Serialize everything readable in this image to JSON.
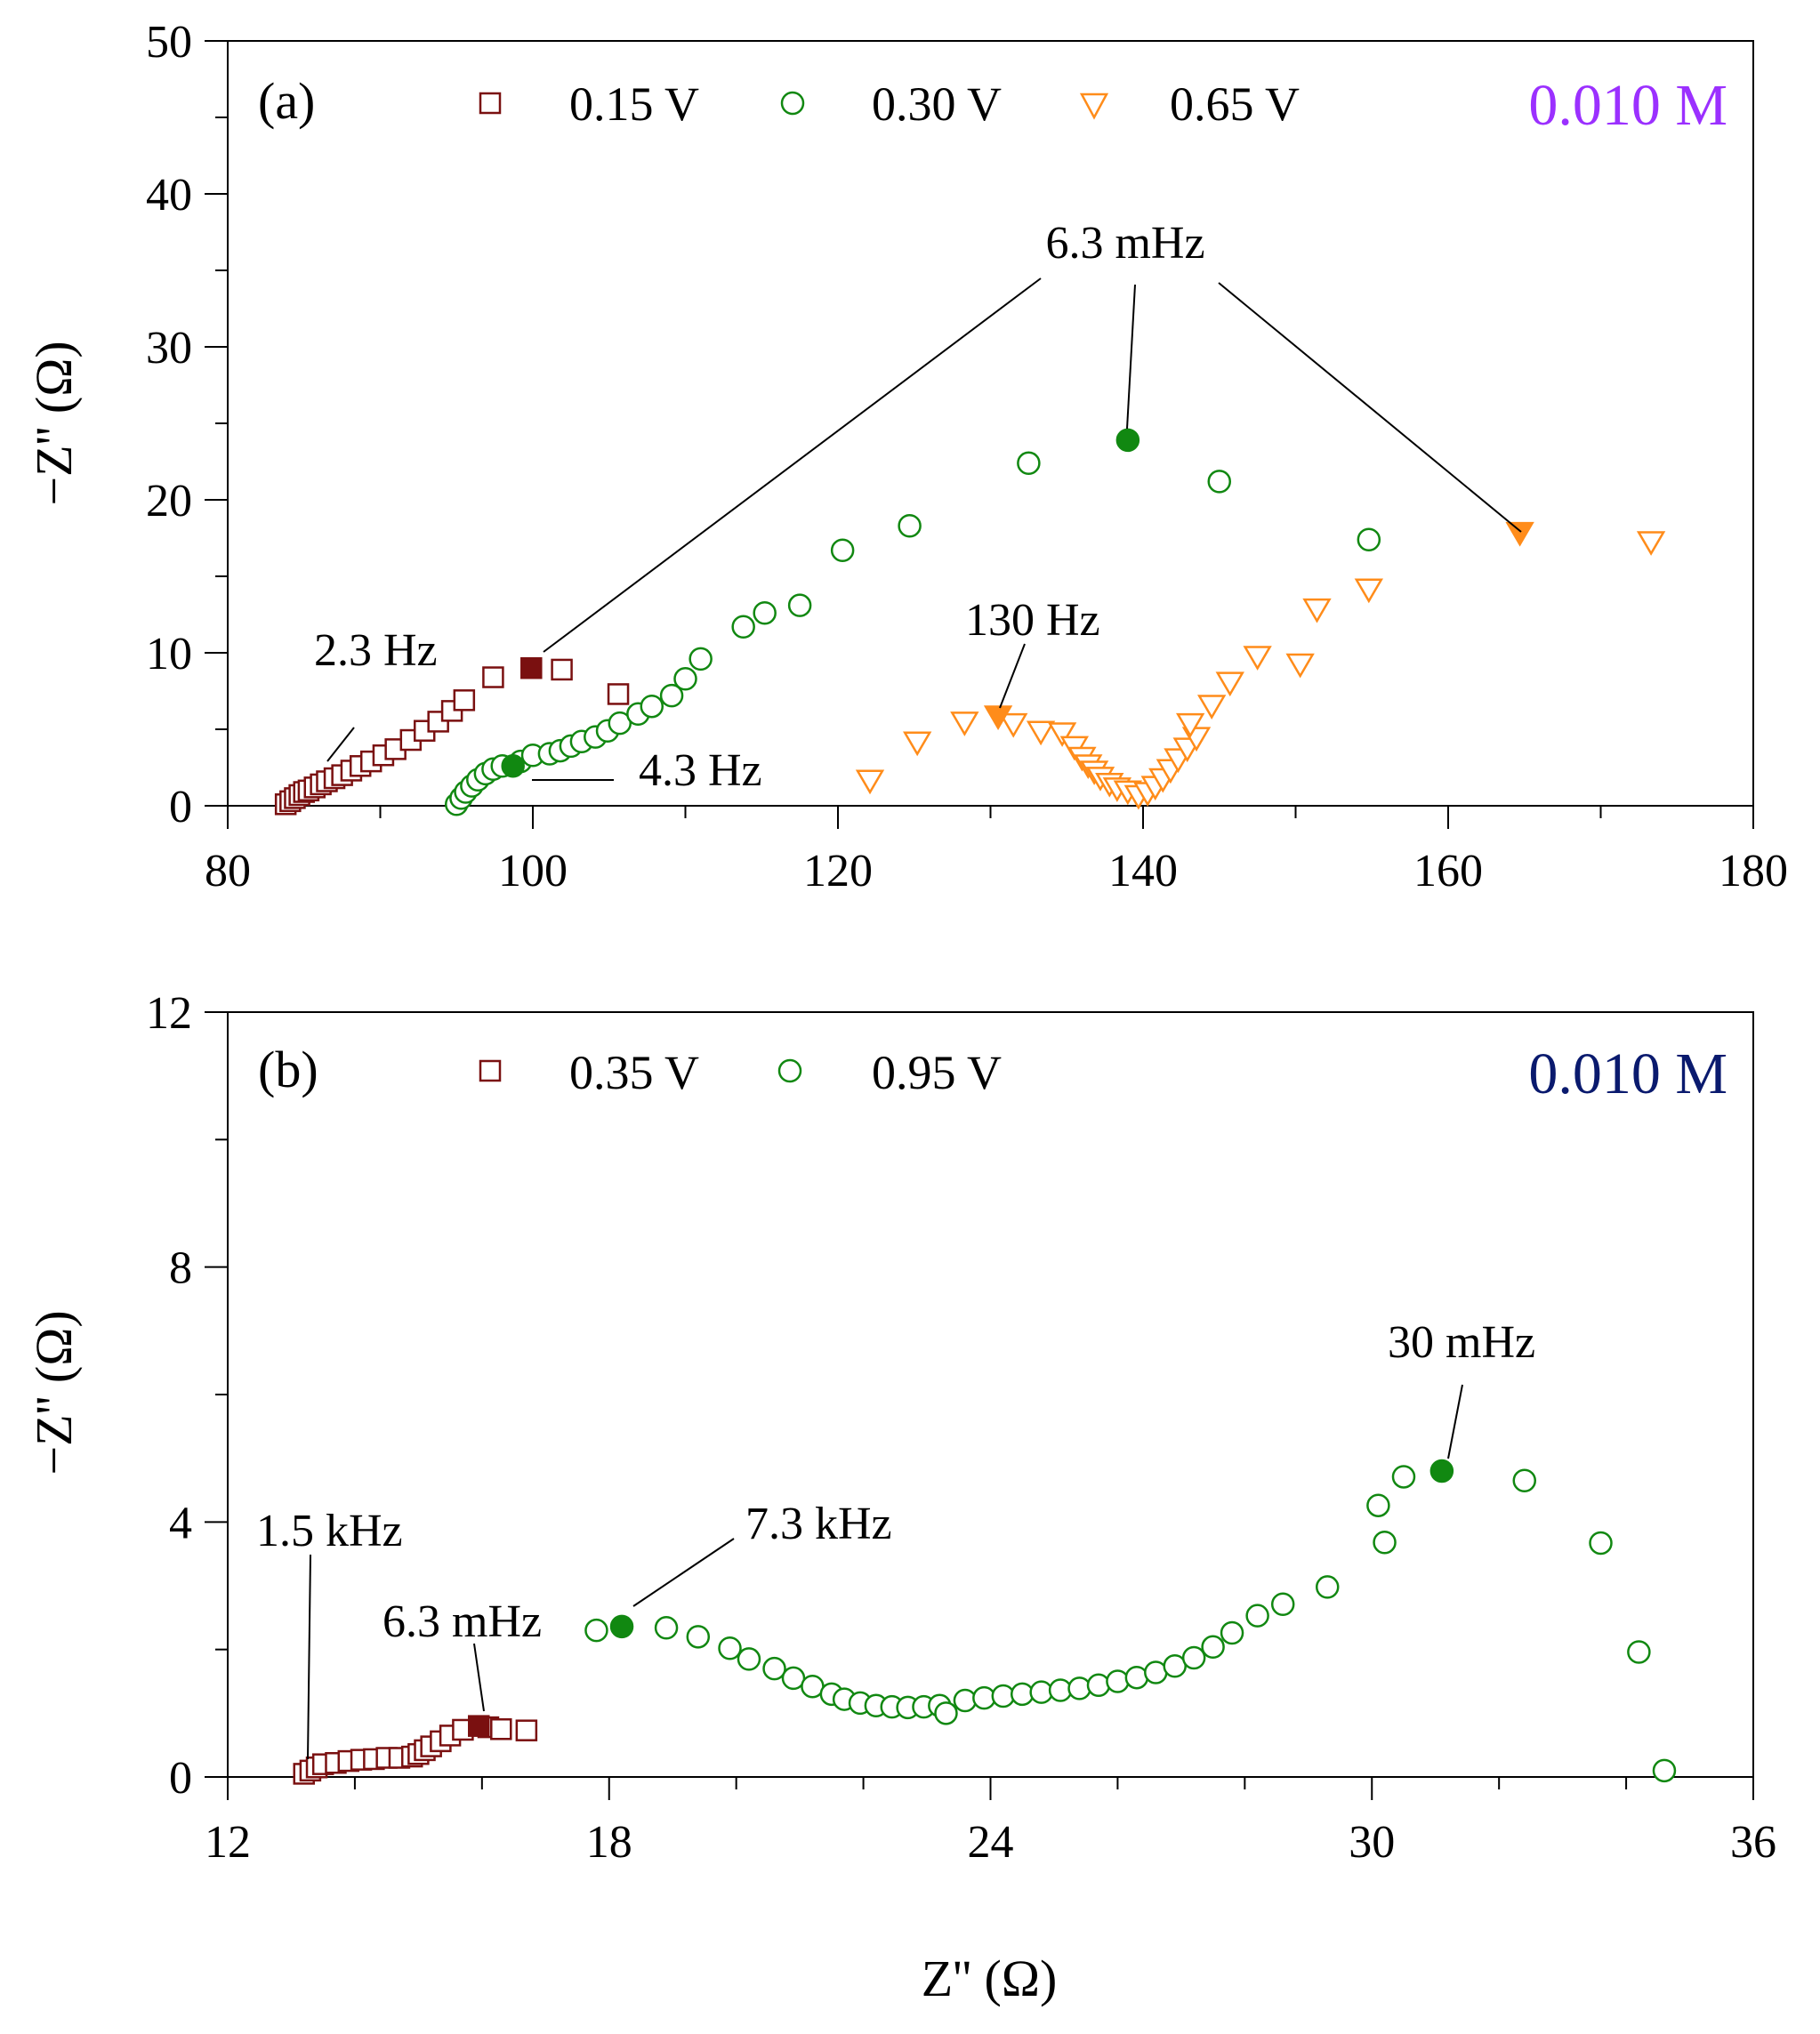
{
  "figure": {
    "xlabel": "Z'' (Ω)",
    "ylabel": "−Z'' (Ω)"
  },
  "colors": {
    "red": "#7a1010",
    "green": "#118811",
    "orange": "#ff8c1a",
    "purple": "#9b30ff",
    "navy": "#0a1a6e"
  },
  "chart_data": [
    {
      "type": "scatter",
      "panel": "(a)",
      "concentration": "0.010 M",
      "concentration_color": "#9b30ff",
      "xlim": [
        80,
        180
      ],
      "ylim": [
        0,
        50
      ],
      "xticks": [
        80,
        100,
        120,
        140,
        160,
        180
      ],
      "yticks": [
        0,
        10,
        20,
        30,
        40,
        50
      ],
      "series": [
        {
          "name": "0.15 V",
          "marker": "square",
          "color": "#7a1010",
          "points": [
            [
              83.8,
              0.1
            ],
            [
              84.1,
              0.3
            ],
            [
              84.4,
              0.5
            ],
            [
              84.7,
              0.7
            ],
            [
              85.0,
              0.9
            ],
            [
              85.3,
              1.0
            ],
            [
              85.7,
              1.2
            ],
            [
              86.1,
              1.4
            ],
            [
              86.5,
              1.6
            ],
            [
              87.0,
              1.8
            ],
            [
              87.5,
              2.0
            ],
            [
              88.1,
              2.3
            ],
            [
              88.7,
              2.6
            ],
            [
              89.4,
              2.9
            ],
            [
              90.2,
              3.3
            ],
            [
              91.0,
              3.7
            ],
            [
              92.0,
              4.3
            ],
            [
              92.9,
              4.9
            ],
            [
              93.8,
              5.5
            ],
            [
              94.7,
              6.2
            ],
            [
              95.5,
              6.9
            ],
            [
              97.4,
              8.4
            ],
            [
              101.9,
              8.9
            ],
            [
              105.6,
              7.3
            ]
          ],
          "highlight": [
            [
              99.9,
              9.0
            ]
          ]
        },
        {
          "name": "0.30 V",
          "marker": "circle",
          "color": "#118811",
          "points": [
            [
              95.0,
              0.1
            ],
            [
              95.3,
              0.5
            ],
            [
              95.6,
              0.9
            ],
            [
              96.0,
              1.3
            ],
            [
              96.4,
              1.7
            ],
            [
              96.9,
              2.1
            ],
            [
              97.4,
              2.4
            ],
            [
              98.0,
              2.6
            ],
            [
              99.2,
              2.9
            ],
            [
              100.0,
              3.3
            ],
            [
              101.1,
              3.4
            ],
            [
              101.8,
              3.6
            ],
            [
              102.5,
              3.9
            ],
            [
              103.2,
              4.2
            ],
            [
              104.1,
              4.5
            ],
            [
              104.9,
              4.9
            ],
            [
              105.7,
              5.4
            ],
            [
              106.9,
              6.0
            ],
            [
              107.8,
              6.5
            ],
            [
              109.1,
              7.2
            ],
            [
              110.0,
              8.3
            ],
            [
              111.0,
              9.6
            ],
            [
              113.8,
              11.7
            ],
            [
              115.2,
              12.6
            ],
            [
              117.5,
              13.1
            ],
            [
              120.3,
              16.7
            ],
            [
              124.7,
              18.3
            ],
            [
              132.5,
              22.4
            ],
            [
              145.0,
              21.2
            ],
            [
              154.8,
              17.4
            ]
          ],
          "highlight": [
            [
              98.7,
              2.6
            ],
            [
              139.0,
              23.9
            ]
          ]
        },
        {
          "name": "0.65 V",
          "marker": "triangle-down",
          "color": "#ff8c1a",
          "points": [
            [
              122.1,
              1.7
            ],
            [
              125.2,
              4.2
            ],
            [
              128.3,
              5.5
            ],
            [
              131.5,
              5.4
            ],
            [
              133.3,
              4.9
            ],
            [
              134.7,
              4.8
            ],
            [
              135.5,
              3.9
            ],
            [
              136.0,
              3.2
            ],
            [
              136.4,
              2.7
            ],
            [
              136.8,
              2.3
            ],
            [
              137.2,
              1.9
            ],
            [
              137.8,
              1.5
            ],
            [
              138.3,
              1.2
            ],
            [
              139.0,
              1.0
            ],
            [
              139.7,
              0.7
            ],
            [
              140.3,
              0.9
            ],
            [
              140.8,
              1.3
            ],
            [
              141.3,
              1.8
            ],
            [
              141.8,
              2.4
            ],
            [
              142.3,
              3.1
            ],
            [
              142.9,
              3.8
            ],
            [
              143.5,
              4.5
            ],
            [
              143.1,
              5.4
            ],
            [
              144.5,
              6.6
            ],
            [
              145.7,
              8.1
            ],
            [
              147.5,
              9.8
            ],
            [
              150.3,
              9.3
            ],
            [
              151.4,
              12.9
            ],
            [
              154.8,
              14.2
            ],
            [
              173.3,
              17.3
            ]
          ],
          "highlight": [
            [
              130.5,
              5.9
            ],
            [
              164.7,
              17.9
            ]
          ]
        }
      ],
      "annotations": [
        "6.3 mHz",
        "2.3 Hz",
        "4.3 Hz",
        "130 Hz"
      ]
    },
    {
      "type": "scatter",
      "panel": "(b)",
      "concentration": "0.010 M",
      "concentration_color": "#0a1a6e",
      "xlim": [
        12,
        36
      ],
      "ylim": [
        0,
        12
      ],
      "xticks": [
        12,
        18,
        24,
        30,
        36
      ],
      "yticks": [
        0,
        4,
        8,
        12
      ],
      "series": [
        {
          "name": "0.35 V",
          "marker": "square",
          "color": "#7a1010",
          "points": [
            [
              13.2,
              0.05
            ],
            [
              13.3,
              0.1
            ],
            [
              13.4,
              0.15
            ],
            [
              13.5,
              0.2
            ],
            [
              13.7,
              0.22
            ],
            [
              13.9,
              0.25
            ],
            [
              14.1,
              0.27
            ],
            [
              14.3,
              0.28
            ],
            [
              14.5,
              0.3
            ],
            [
              14.7,
              0.3
            ],
            [
              14.9,
              0.32
            ],
            [
              15.0,
              0.36
            ],
            [
              15.1,
              0.42
            ],
            [
              15.2,
              0.48
            ],
            [
              15.35,
              0.56
            ],
            [
              15.5,
              0.65
            ],
            [
              15.7,
              0.74
            ],
            [
              16.1,
              0.78
            ],
            [
              16.3,
              0.75
            ],
            [
              16.7,
              0.73
            ]
          ],
          "highlight": [
            [
              15.95,
              0.8
            ]
          ]
        },
        {
          "name": "0.95 V",
          "marker": "circle",
          "color": "#118811",
          "points": [
            [
              17.8,
              2.3
            ],
            [
              18.9,
              2.34
            ],
            [
              19.4,
              2.2
            ],
            [
              19.9,
              2.02
            ],
            [
              20.2,
              1.85
            ],
            [
              20.6,
              1.7
            ],
            [
              20.9,
              1.55
            ],
            [
              21.2,
              1.42
            ],
            [
              21.5,
              1.3
            ],
            [
              21.7,
              1.22
            ],
            [
              21.95,
              1.16
            ],
            [
              22.2,
              1.12
            ],
            [
              22.45,
              1.1
            ],
            [
              22.7,
              1.09
            ],
            [
              22.95,
              1.1
            ],
            [
              23.2,
              1.12
            ],
            [
              23.3,
              1.0
            ],
            [
              23.6,
              1.2
            ],
            [
              23.9,
              1.24
            ],
            [
              24.2,
              1.27
            ],
            [
              24.5,
              1.3
            ],
            [
              24.8,
              1.33
            ],
            [
              25.1,
              1.36
            ],
            [
              25.4,
              1.39
            ],
            [
              25.7,
              1.44
            ],
            [
              26.0,
              1.5
            ],
            [
              26.3,
              1.56
            ],
            [
              26.6,
              1.64
            ],
            [
              26.9,
              1.74
            ],
            [
              27.2,
              1.87
            ],
            [
              27.5,
              2.04
            ],
            [
              27.8,
              2.26
            ],
            [
              28.2,
              2.53
            ],
            [
              28.6,
              2.71
            ],
            [
              29.3,
              2.98
            ],
            [
              30.1,
              4.26
            ],
            [
              30.2,
              3.68
            ],
            [
              30.5,
              4.71
            ],
            [
              32.4,
              4.65
            ],
            [
              33.6,
              3.67
            ],
            [
              34.2,
              1.96
            ],
            [
              34.6,
              0.1
            ]
          ],
          "highlight": [
            [
              18.2,
              2.36
            ],
            [
              31.1,
              4.8
            ]
          ]
        }
      ],
      "annotations": [
        "1.5 kHz",
        "6.3 mHz",
        "7.3 kHz",
        "30 mHz"
      ]
    }
  ]
}
